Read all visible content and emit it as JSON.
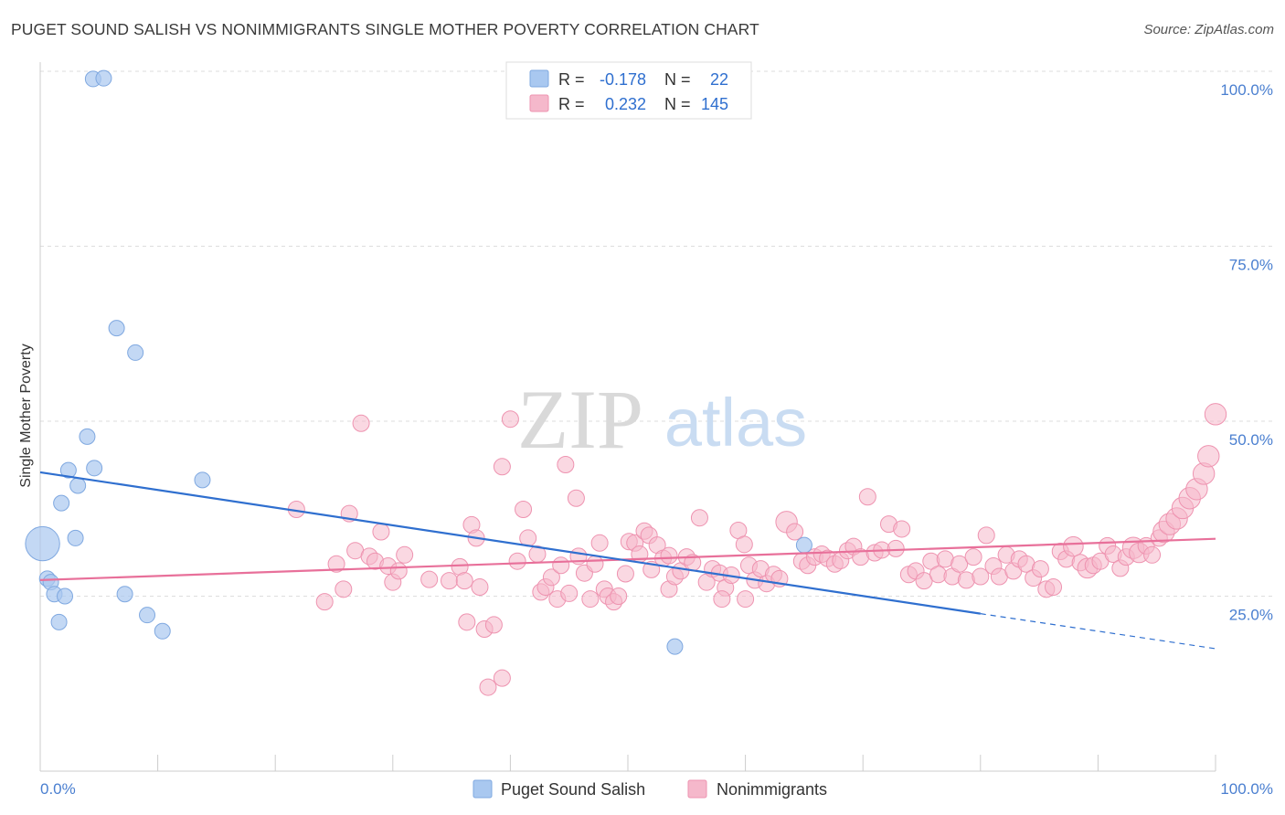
{
  "title": "PUGET SOUND SALISH VS NONIMMIGRANTS SINGLE MOTHER POVERTY CORRELATION CHART",
  "source": "Source: ZipAtlas.com",
  "watermark": {
    "zip": "ZIP",
    "atlas": "atlas"
  },
  "colors": {
    "blue_fill": "#a9c8f0",
    "blue_stroke": "#7fa8e0",
    "blue_line": "#2f6fcf",
    "pink_fill": "#f5b8cb",
    "pink_stroke": "#ee93b0",
    "pink_line": "#e8709a",
    "tick_label": "#4a7fd0",
    "grid": "#dddddd"
  },
  "legend": {
    "rows": [
      {
        "r_label": "R =",
        "r_value": "-0.178",
        "n_label": "N =",
        "n_value": "22"
      },
      {
        "r_label": "R =",
        "r_value": "0.232",
        "n_label": "N =",
        "n_value": "145"
      }
    ]
  },
  "bottom_legend": [
    "Puget Sound Salish",
    "Nonimmigrants"
  ],
  "chart_data": {
    "type": "scatter",
    "title": "PUGET SOUND SALISH VS NONIMMIGRANTS SINGLE MOTHER POVERTY CORRELATION CHART",
    "xlabel": "",
    "ylabel": "Single Mother Poverty",
    "xlim": [
      0,
      100
    ],
    "ylim": [
      0,
      100
    ],
    "x_tick_labels": [
      "0.0%",
      "100.0%"
    ],
    "y_tick_labels": [
      {
        "value": 25,
        "label": "25.0%"
      },
      {
        "value": 50,
        "label": "50.0%"
      },
      {
        "value": 75,
        "label": "75.0%"
      },
      {
        "value": 100,
        "label": "100.0%"
      }
    ],
    "grid": "horizontal dashed",
    "legend_position": "top-center",
    "series": [
      {
        "name": "Puget Sound Salish",
        "r": -0.178,
        "n": 22,
        "trend": {
          "x0": 0,
          "y0": 42.7,
          "x1": 80,
          "y1": 22.5,
          "dash_to": 100,
          "dash_y": 17.5
        },
        "points": [
          [
            0.2,
            32.5,
            2.2
          ],
          [
            0.6,
            27.5,
            1
          ],
          [
            0.9,
            27.0,
            1
          ],
          [
            1.2,
            25.3,
            1
          ],
          [
            1.6,
            21.3,
            1
          ],
          [
            1.8,
            38.3,
            1
          ],
          [
            2.1,
            25.0,
            1
          ],
          [
            2.4,
            43.0,
            1
          ],
          [
            3.0,
            33.3,
            1
          ],
          [
            3.2,
            40.8,
            1
          ],
          [
            4.0,
            47.8,
            1
          ],
          [
            4.5,
            98.9,
            1
          ],
          [
            4.6,
            43.3,
            1
          ],
          [
            5.4,
            99.0,
            1
          ],
          [
            7.2,
            25.3,
            1
          ],
          [
            6.5,
            63.3,
            1
          ],
          [
            8.1,
            59.8,
            1
          ],
          [
            9.1,
            22.3,
            1
          ],
          [
            10.4,
            20.0,
            1
          ],
          [
            13.8,
            41.6,
            1
          ],
          [
            54.0,
            17.8,
            1
          ],
          [
            65.0,
            32.3,
            1
          ]
        ]
      },
      {
        "name": "Nonimmigrants",
        "r": 0.232,
        "n": 145,
        "trend": {
          "x0": 0,
          "y0": 27.3,
          "x1": 100,
          "y1": 33.2
        },
        "points": [
          [
            21.8,
            37.4,
            1
          ],
          [
            24.2,
            24.2,
            1
          ],
          [
            25.2,
            29.6,
            1
          ],
          [
            25.8,
            26.0,
            1
          ],
          [
            26.3,
            36.8,
            1
          ],
          [
            26.8,
            31.5,
            1
          ],
          [
            27.3,
            49.7,
            1
          ],
          [
            28.0,
            30.7,
            1
          ],
          [
            28.5,
            30.0,
            1
          ],
          [
            29.0,
            34.2,
            1
          ],
          [
            29.6,
            29.3,
            1
          ],
          [
            30.0,
            27.0,
            1
          ],
          [
            30.5,
            28.6,
            1
          ],
          [
            31.0,
            30.9,
            1
          ],
          [
            33.1,
            27.4,
            1
          ],
          [
            34.8,
            27.2,
            1
          ],
          [
            35.7,
            29.2,
            1
          ],
          [
            36.1,
            27.2,
            1
          ],
          [
            36.3,
            21.3,
            1
          ],
          [
            36.7,
            35.2,
            1
          ],
          [
            37.1,
            33.3,
            1
          ],
          [
            37.4,
            26.3,
            1
          ],
          [
            37.8,
            20.3,
            1
          ],
          [
            38.1,
            12.0,
            1
          ],
          [
            38.6,
            20.9,
            1
          ],
          [
            39.3,
            43.5,
            1
          ],
          [
            39.3,
            13.3,
            1
          ],
          [
            40.0,
            50.3,
            1
          ],
          [
            40.6,
            30.0,
            1
          ],
          [
            41.1,
            37.4,
            1
          ],
          [
            41.5,
            33.3,
            1
          ],
          [
            42.3,
            31.0,
            1
          ],
          [
            42.6,
            25.6,
            1
          ],
          [
            43.0,
            26.3,
            1
          ],
          [
            43.5,
            27.7,
            1
          ],
          [
            44.0,
            24.6,
            1
          ],
          [
            44.3,
            29.4,
            1
          ],
          [
            44.7,
            43.8,
            1
          ],
          [
            45.0,
            25.4,
            1
          ],
          [
            45.6,
            39.0,
            1
          ],
          [
            45.8,
            30.7,
            1
          ],
          [
            46.3,
            28.3,
            1
          ],
          [
            46.8,
            24.6,
            1
          ],
          [
            47.2,
            29.6,
            1
          ],
          [
            47.6,
            32.6,
            1
          ],
          [
            48.0,
            26.0,
            1
          ],
          [
            48.3,
            25.0,
            1
          ],
          [
            48.8,
            24.2,
            1
          ],
          [
            49.2,
            25.0,
            1
          ],
          [
            49.8,
            28.2,
            1
          ],
          [
            50.1,
            32.8,
            1
          ],
          [
            50.6,
            32.6,
            1
          ],
          [
            51.0,
            31.0,
            1
          ],
          [
            51.4,
            34.3,
            1
          ],
          [
            51.8,
            33.7,
            1
          ],
          [
            52.5,
            32.3,
            1
          ],
          [
            53.0,
            30.4,
            1
          ],
          [
            53.5,
            26.0,
            1
          ],
          [
            54.0,
            27.8,
            1
          ],
          [
            54.5,
            28.6,
            1
          ],
          [
            55.0,
            30.6,
            1
          ],
          [
            55.5,
            29.8,
            1
          ],
          [
            56.1,
            36.2,
            1
          ],
          [
            56.7,
            27.0,
            1
          ],
          [
            57.2,
            28.9,
            1
          ],
          [
            57.8,
            28.3,
            1
          ],
          [
            58.3,
            26.2,
            1
          ],
          [
            58.8,
            28.0,
            1
          ],
          [
            59.4,
            34.4,
            1
          ],
          [
            59.9,
            32.4,
            1
          ],
          [
            60.3,
            29.4,
            1
          ],
          [
            60.8,
            27.3,
            1
          ],
          [
            61.3,
            28.9,
            1
          ],
          [
            61.8,
            26.8,
            1
          ],
          [
            62.4,
            28.1,
            1
          ],
          [
            62.9,
            27.5,
            1
          ],
          [
            63.5,
            35.6,
            1.3
          ],
          [
            64.2,
            34.2,
            1
          ],
          [
            64.8,
            30.0,
            1
          ],
          [
            65.3,
            29.4,
            1
          ],
          [
            65.9,
            30.6,
            1
          ],
          [
            66.5,
            31.0,
            1
          ],
          [
            67.0,
            30.4,
            1
          ],
          [
            67.6,
            29.6,
            1
          ],
          [
            68.1,
            30.1,
            1
          ],
          [
            68.7,
            31.5,
            1
          ],
          [
            69.2,
            32.1,
            1
          ],
          [
            69.8,
            30.6,
            1
          ],
          [
            70.4,
            39.2,
            1
          ],
          [
            71.0,
            31.2,
            1
          ],
          [
            71.6,
            31.6,
            1
          ],
          [
            72.2,
            35.3,
            1
          ],
          [
            72.8,
            31.8,
            1
          ],
          [
            73.3,
            34.6,
            1
          ],
          [
            73.9,
            28.1,
            1
          ],
          [
            74.5,
            28.6,
            1
          ],
          [
            75.2,
            27.2,
            1
          ],
          [
            75.8,
            30.0,
            1
          ],
          [
            76.4,
            28.1,
            1
          ],
          [
            77.0,
            30.3,
            1
          ],
          [
            77.6,
            27.8,
            1
          ],
          [
            78.2,
            29.6,
            1
          ],
          [
            78.8,
            27.3,
            1
          ],
          [
            79.4,
            30.6,
            1
          ],
          [
            80.0,
            27.8,
            1
          ],
          [
            80.5,
            33.7,
            1
          ],
          [
            81.1,
            29.3,
            1
          ],
          [
            81.6,
            27.8,
            1
          ],
          [
            82.2,
            30.9,
            1
          ],
          [
            82.8,
            28.6,
            1
          ],
          [
            83.3,
            30.3,
            1
          ],
          [
            83.9,
            29.6,
            1
          ],
          [
            84.5,
            27.6,
            1
          ],
          [
            85.1,
            28.9,
            1
          ],
          [
            85.6,
            26.0,
            1
          ],
          [
            86.2,
            26.3,
            1
          ],
          [
            86.8,
            31.4,
            1
          ],
          [
            87.3,
            30.3,
            1
          ],
          [
            87.9,
            32.1,
            1.2
          ],
          [
            88.5,
            29.8,
            1
          ],
          [
            89.1,
            29.0,
            1.2
          ],
          [
            89.6,
            29.4,
            1
          ],
          [
            90.2,
            30.0,
            1
          ],
          [
            90.8,
            32.2,
            1
          ],
          [
            91.3,
            31.0,
            1
          ],
          [
            91.9,
            29.0,
            1
          ],
          [
            92.4,
            30.6,
            1
          ],
          [
            93.0,
            31.9,
            1.3
          ],
          [
            93.5,
            31.2,
            1.2
          ],
          [
            94.1,
            32.2,
            1
          ],
          [
            94.6,
            30.9,
            1
          ],
          [
            95.2,
            33.3,
            1
          ],
          [
            95.6,
            34.2,
            1.3
          ],
          [
            96.1,
            35.3,
            1.3
          ],
          [
            96.7,
            36.1,
            1.3
          ],
          [
            97.2,
            37.6,
            1.3
          ],
          [
            97.8,
            39.0,
            1.3
          ],
          [
            98.4,
            40.3,
            1.3
          ],
          [
            99.0,
            42.5,
            1.3
          ],
          [
            99.4,
            45.0,
            1.3
          ],
          [
            100.0,
            51.0,
            1.3
          ],
          [
            53.5,
            30.8,
            1
          ],
          [
            52.0,
            28.8,
            1
          ],
          [
            60.0,
            24.6,
            1
          ],
          [
            58.0,
            24.6,
            1
          ]
        ]
      }
    ]
  },
  "axes": {
    "ylabel": "Single Mother Poverty",
    "x_left_label": "0.0%",
    "x_right_label": "100.0%"
  }
}
